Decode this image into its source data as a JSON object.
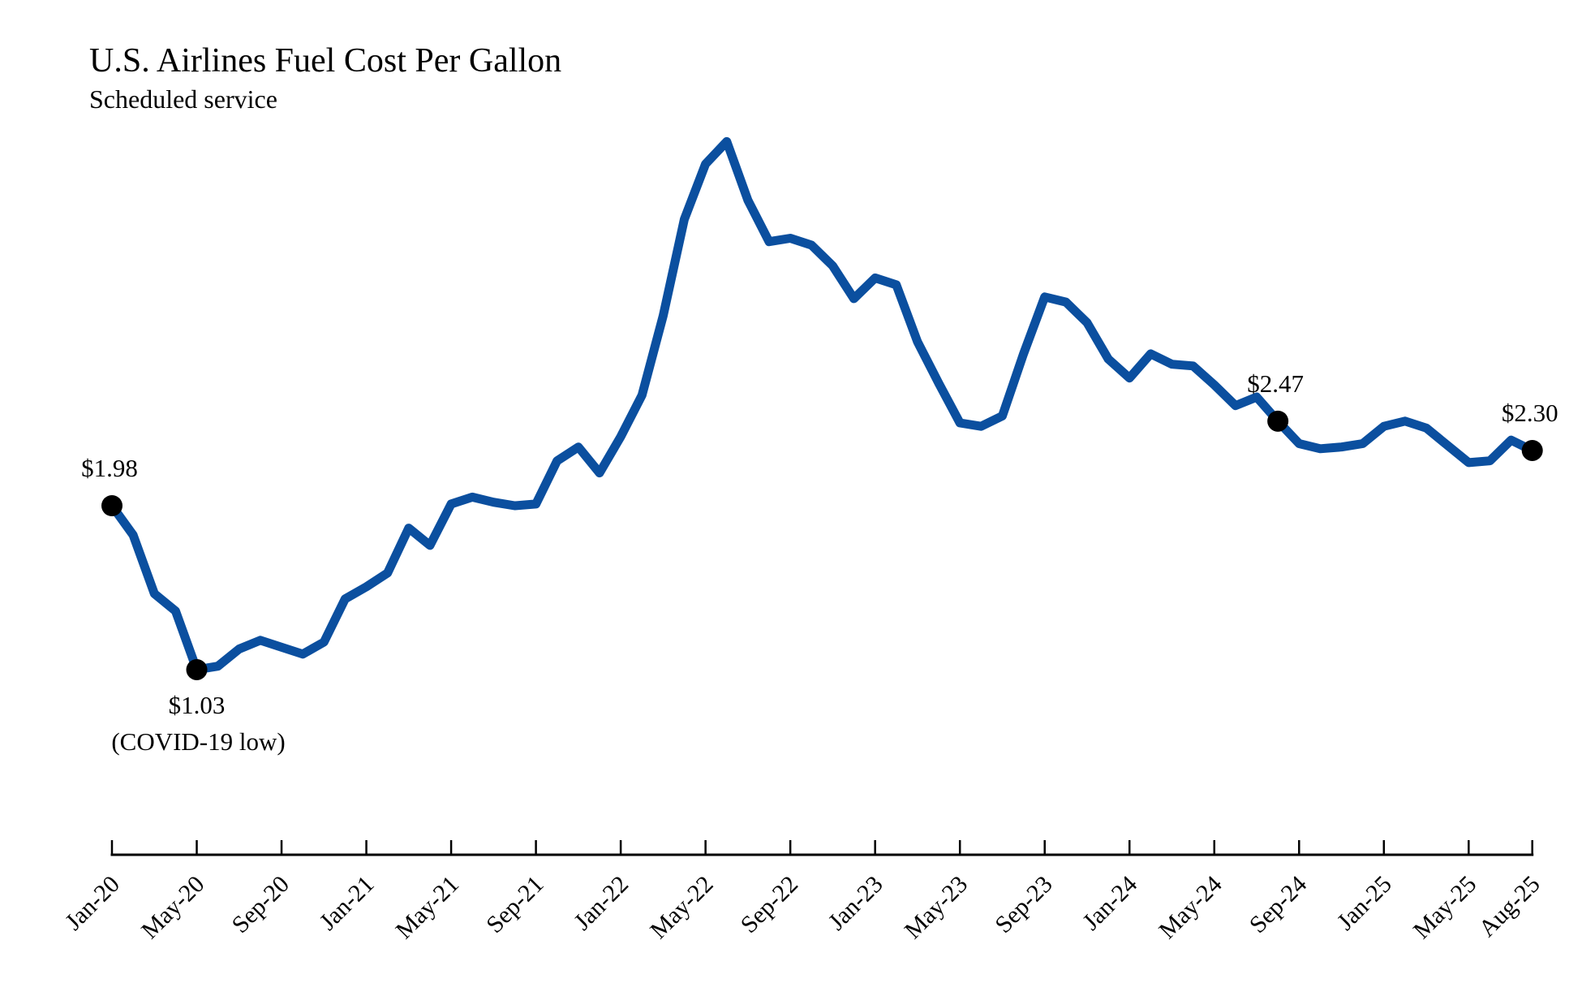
{
  "chart_data": {
    "type": "line",
    "title": "U.S. Airlines Fuel Cost Per Gallon",
    "subtitle": "Scheduled service",
    "xlabel": "",
    "ylabel": "",
    "ylim": [
      0.5,
      4.5
    ],
    "grid": false,
    "legend": "none",
    "line_color": "#0b4f9f",
    "marker_color": "#000000",
    "x": [
      "Jan-20",
      "Feb-20",
      "Mar-20",
      "Apr-20",
      "May-20",
      "Jun-20",
      "Jul-20",
      "Aug-20",
      "Sep-20",
      "Oct-20",
      "Nov-20",
      "Dec-20",
      "Jan-21",
      "Feb-21",
      "Mar-21",
      "Apr-21",
      "May-21",
      "Jun-21",
      "Jul-21",
      "Aug-21",
      "Sep-21",
      "Oct-21",
      "Nov-21",
      "Dec-21",
      "Jan-22",
      "Feb-22",
      "Mar-22",
      "Apr-22",
      "May-22",
      "Jun-22",
      "Jul-22",
      "Aug-22",
      "Sep-22",
      "Oct-22",
      "Nov-22",
      "Dec-22",
      "Jan-23",
      "Feb-23",
      "Mar-23",
      "Apr-23",
      "May-23",
      "Jun-23",
      "Jul-23",
      "Aug-23",
      "Sep-23",
      "Oct-23",
      "Nov-23",
      "Dec-23",
      "Jan-24",
      "Feb-24",
      "Mar-24",
      "Apr-24",
      "May-24",
      "Jun-24",
      "Jul-24",
      "Aug-24",
      "Sep-24",
      "Oct-24",
      "Nov-24",
      "Dec-24",
      "Jan-25",
      "Feb-25",
      "Mar-25",
      "Apr-25",
      "May-25",
      "Jun-25",
      "Jul-25",
      "Aug-25"
    ],
    "series": [
      {
        "name": "Fuel cost per gallon ($)",
        "values": [
          1.98,
          1.81,
          1.47,
          1.37,
          1.03,
          1.05,
          1.15,
          1.2,
          1.16,
          1.12,
          1.19,
          1.44,
          1.51,
          1.59,
          1.85,
          1.75,
          1.99,
          2.03,
          2.0,
          1.98,
          1.99,
          2.24,
          2.32,
          2.17,
          2.38,
          2.62,
          3.08,
          3.64,
          3.96,
          4.09,
          3.75,
          3.51,
          3.53,
          3.49,
          3.37,
          3.18,
          3.3,
          3.26,
          2.93,
          2.69,
          2.46,
          2.44,
          2.5,
          2.86,
          3.19,
          3.16,
          3.04,
          2.83,
          2.72,
          2.86,
          2.8,
          2.79,
          2.68,
          2.56,
          2.61,
          2.47,
          2.34,
          2.31,
          2.32,
          2.34,
          2.44,
          2.47,
          2.43,
          2.33,
          2.23,
          2.24,
          2.36,
          2.3
        ]
      }
    ],
    "tick_labels": [
      "Jan-20",
      "May-20",
      "Sep-20",
      "Jan-21",
      "May-21",
      "Sep-21",
      "Jan-22",
      "May-22",
      "Sep-22",
      "Jan-23",
      "May-23",
      "Sep-23",
      "Jan-24",
      "May-24",
      "Sep-24",
      "Jan-25",
      "May-25",
      "Aug-25"
    ],
    "annotations": [
      {
        "x": "Jan-20",
        "value": 1.98,
        "label": "$1.98",
        "note": "",
        "position": "above"
      },
      {
        "x": "May-20",
        "value": 1.03,
        "label": "$1.03",
        "note": "(COVID-19 low)",
        "position": "below"
      },
      {
        "x": "Aug-24",
        "value": 2.47,
        "label": "$2.47",
        "note": "",
        "position": "above"
      },
      {
        "x": "Aug-25",
        "value": 2.3,
        "label": "$2.30",
        "note": "",
        "position": "above"
      }
    ]
  }
}
